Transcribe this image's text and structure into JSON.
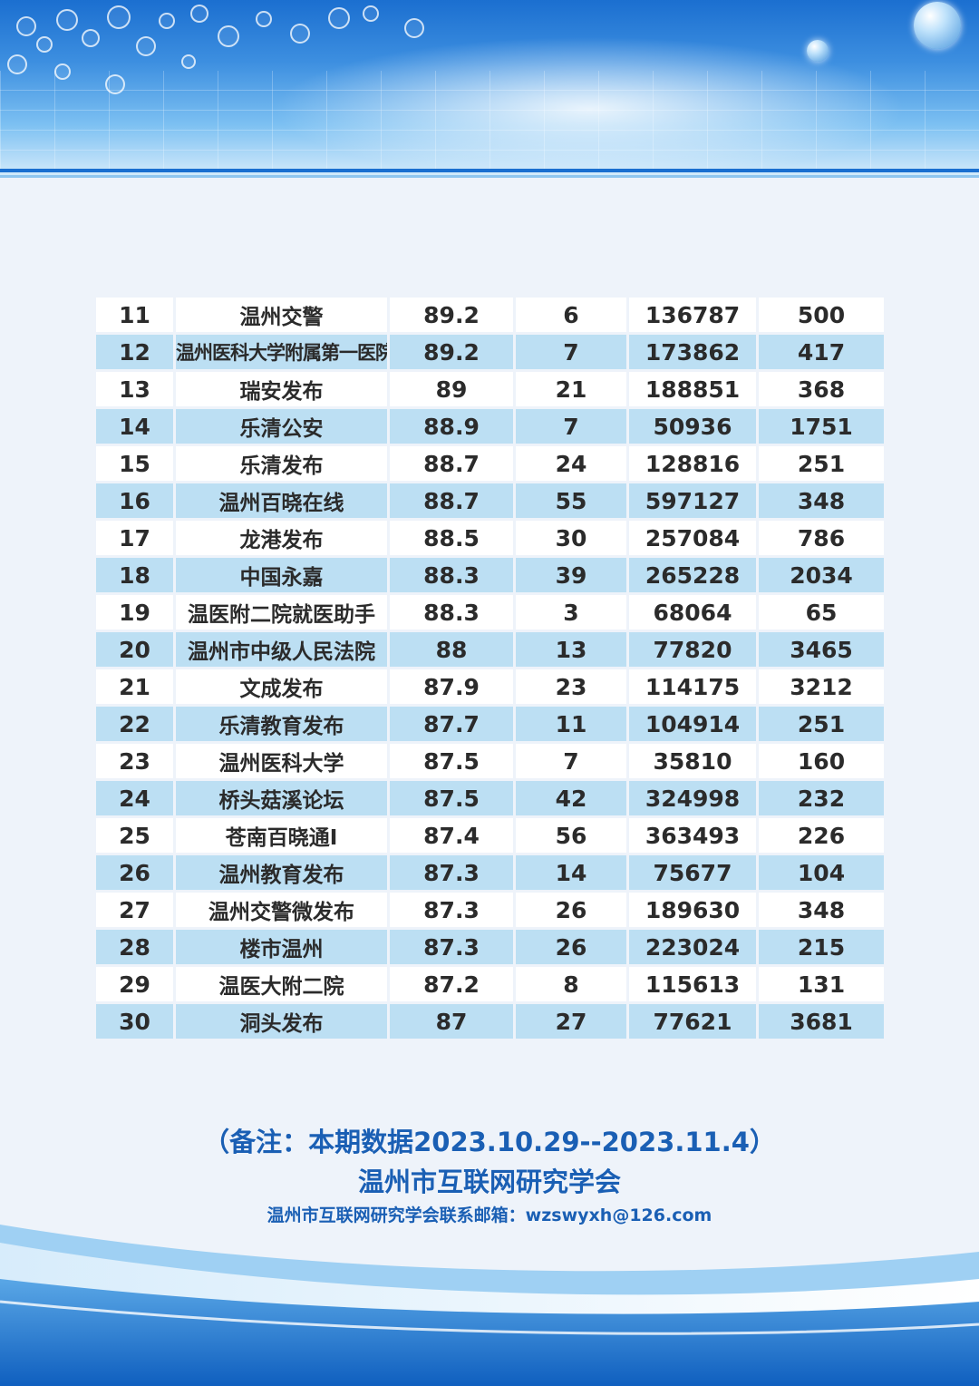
{
  "table": {
    "rows": [
      {
        "rank": "11",
        "name": "温州交警",
        "score": "89.2",
        "posts": "6",
        "reads": "136787",
        "likes": "500"
      },
      {
        "rank": "12",
        "name": "温州医科大学附属第一医院",
        "score": "89.2",
        "posts": "7",
        "reads": "173862",
        "likes": "417"
      },
      {
        "rank": "13",
        "name": "瑞安发布",
        "score": "89",
        "posts": "21",
        "reads": "188851",
        "likes": "368"
      },
      {
        "rank": "14",
        "name": "乐清公安",
        "score": "88.9",
        "posts": "7",
        "reads": "50936",
        "likes": "1751"
      },
      {
        "rank": "15",
        "name": "乐清发布",
        "score": "88.7",
        "posts": "24",
        "reads": "128816",
        "likes": "251"
      },
      {
        "rank": "16",
        "name": "温州百晓在线",
        "score": "88.7",
        "posts": "55",
        "reads": "597127",
        "likes": "348"
      },
      {
        "rank": "17",
        "name": "龙港发布",
        "score": "88.5",
        "posts": "30",
        "reads": "257084",
        "likes": "786"
      },
      {
        "rank": "18",
        "name": "中国永嘉",
        "score": "88.3",
        "posts": "39",
        "reads": "265228",
        "likes": "2034"
      },
      {
        "rank": "19",
        "name": "温医附二院就医助手",
        "score": "88.3",
        "posts": "3",
        "reads": "68064",
        "likes": "65"
      },
      {
        "rank": "20",
        "name": "温州市中级人民法院",
        "score": "88",
        "posts": "13",
        "reads": "77820",
        "likes": "3465"
      },
      {
        "rank": "21",
        "name": "文成发布",
        "score": "87.9",
        "posts": "23",
        "reads": "114175",
        "likes": "3212"
      },
      {
        "rank": "22",
        "name": "乐清教育发布",
        "score": "87.7",
        "posts": "11",
        "reads": "104914",
        "likes": "251"
      },
      {
        "rank": "23",
        "name": "温州医科大学",
        "score": "87.5",
        "posts": "7",
        "reads": "35810",
        "likes": "160"
      },
      {
        "rank": "24",
        "name": "桥头菇溪论坛",
        "score": "87.5",
        "posts": "42",
        "reads": "324998",
        "likes": "232"
      },
      {
        "rank": "25",
        "name": "苍南百晓通I",
        "score": "87.4",
        "posts": "56",
        "reads": "363493",
        "likes": "226"
      },
      {
        "rank": "26",
        "name": "温州教育发布",
        "score": "87.3",
        "posts": "14",
        "reads": "75677",
        "likes": "104"
      },
      {
        "rank": "27",
        "name": "温州交警微发布",
        "score": "87.3",
        "posts": "26",
        "reads": "189630",
        "likes": "348"
      },
      {
        "rank": "28",
        "name": "楼市温州",
        "score": "87.3",
        "posts": "26",
        "reads": "223024",
        "likes": "215"
      },
      {
        "rank": "29",
        "name": "温医大附二院",
        "score": "87.2",
        "posts": "8",
        "reads": "115613",
        "likes": "131"
      },
      {
        "rank": "30",
        "name": "洞头发布",
        "score": "87",
        "posts": "27",
        "reads": "77621",
        "likes": "3681"
      }
    ]
  },
  "footer": {
    "note": "（备注：本期数据2023.10.29--2023.11.4）",
    "org": "温州市互联网研究学会",
    "mail": "温州市互联网研究学会联系邮箱：wzswyxh@126.com"
  },
  "colors": {
    "row_white": "#ffffff",
    "row_blue": "#bcdff3",
    "accent": "#1a5fb4"
  }
}
